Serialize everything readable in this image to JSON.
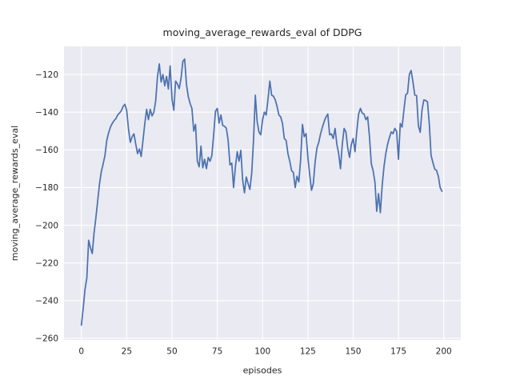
{
  "figure": {
    "background": "#ffffff"
  },
  "chart_data": {
    "type": "line",
    "title": "moving_average_rewards_eval of DDPG",
    "xlabel": "episodes",
    "ylabel": "moving_average_rewards_eval",
    "x_start": 0,
    "x_step": 1,
    "xlim": [
      -9.6,
      209.4
    ],
    "ylim": [
      -260.9,
      -105.1
    ],
    "xticks": [
      0,
      25,
      50,
      75,
      100,
      125,
      150,
      175,
      200
    ],
    "yticks": [
      -120,
      -140,
      -160,
      -180,
      -200,
      -220,
      -240,
      -260
    ],
    "grid": true,
    "legend_position": "none",
    "style": {
      "line_color": "#4c72b0",
      "line_width": 1.75,
      "plot_bg": "#eaeaf2",
      "grid_color": "#ffffff",
      "text_color": "#262626",
      "title_size": 12.5,
      "label_size": 11,
      "tick_size": 10.5
    },
    "values": [
      -253,
      -244,
      -234,
      -228,
      -208,
      -212,
      -215,
      -204,
      -196,
      -187,
      -178,
      -171.5,
      -167.5,
      -163,
      -155,
      -151,
      -148,
      -146,
      -144.5,
      -143.5,
      -141.5,
      -140.5,
      -139.3,
      -137,
      -135.8,
      -139,
      -149,
      -156,
      -153,
      -151.5,
      -157,
      -162,
      -159.5,
      -163.5,
      -155,
      -146,
      -138.5,
      -144,
      -138.5,
      -142,
      -140,
      -134,
      -121,
      -114.4,
      -124,
      -120,
      -126,
      -121,
      -127.7,
      -115.5,
      -133,
      -139,
      -123.5,
      -125,
      -127.5,
      -122,
      -113,
      -111.8,
      -125.4,
      -131.7,
      -135.4,
      -138,
      -150,
      -146.5,
      -166,
      -169,
      -158,
      -169.5,
      -165,
      -170,
      -164,
      -166,
      -163,
      -152,
      -139.5,
      -138,
      -145.8,
      -141.5,
      -147,
      -147.5,
      -148.5,
      -155,
      -168,
      -167,
      -180,
      -169,
      -161,
      -166,
      -160.3,
      -176,
      -182.8,
      -174.4,
      -177.9,
      -181,
      -172.3,
      -155,
      -131,
      -145,
      -150.5,
      -152,
      -144,
      -140,
      -141.5,
      -133,
      -123.5,
      -131,
      -131.5,
      -133.5,
      -137,
      -141.5,
      -142.5,
      -146,
      -154,
      -155,
      -162,
      -166,
      -171,
      -172,
      -180,
      -174,
      -177,
      -165.3,
      -146.5,
      -153,
      -151.4,
      -164,
      -173,
      -181.4,
      -178,
      -166.5,
      -159,
      -156,
      -151.5,
      -148,
      -145,
      -142.5,
      -141,
      -152,
      -151.5,
      -154,
      -148.6,
      -157,
      -162,
      -170,
      -157,
      -148.6,
      -150.5,
      -159,
      -164,
      -157,
      -154,
      -161,
      -150,
      -141,
      -138,
      -140.5,
      -141,
      -144,
      -142.5,
      -153,
      -167.4,
      -171,
      -177,
      -192.6,
      -183.2,
      -193.3,
      -179,
      -169,
      -162,
      -157,
      -153.5,
      -150.5,
      -151.4,
      -148.6,
      -150.3,
      -165,
      -146,
      -147.9,
      -139,
      -130.8,
      -130,
      -120,
      -117.9,
      -124,
      -130.9,
      -131.2,
      -147.3,
      -150.7,
      -138.8,
      -133.5,
      -133.8,
      -134.5,
      -146,
      -163,
      -166.7,
      -170.2,
      -170.9,
      -174,
      -180,
      -182
    ]
  }
}
